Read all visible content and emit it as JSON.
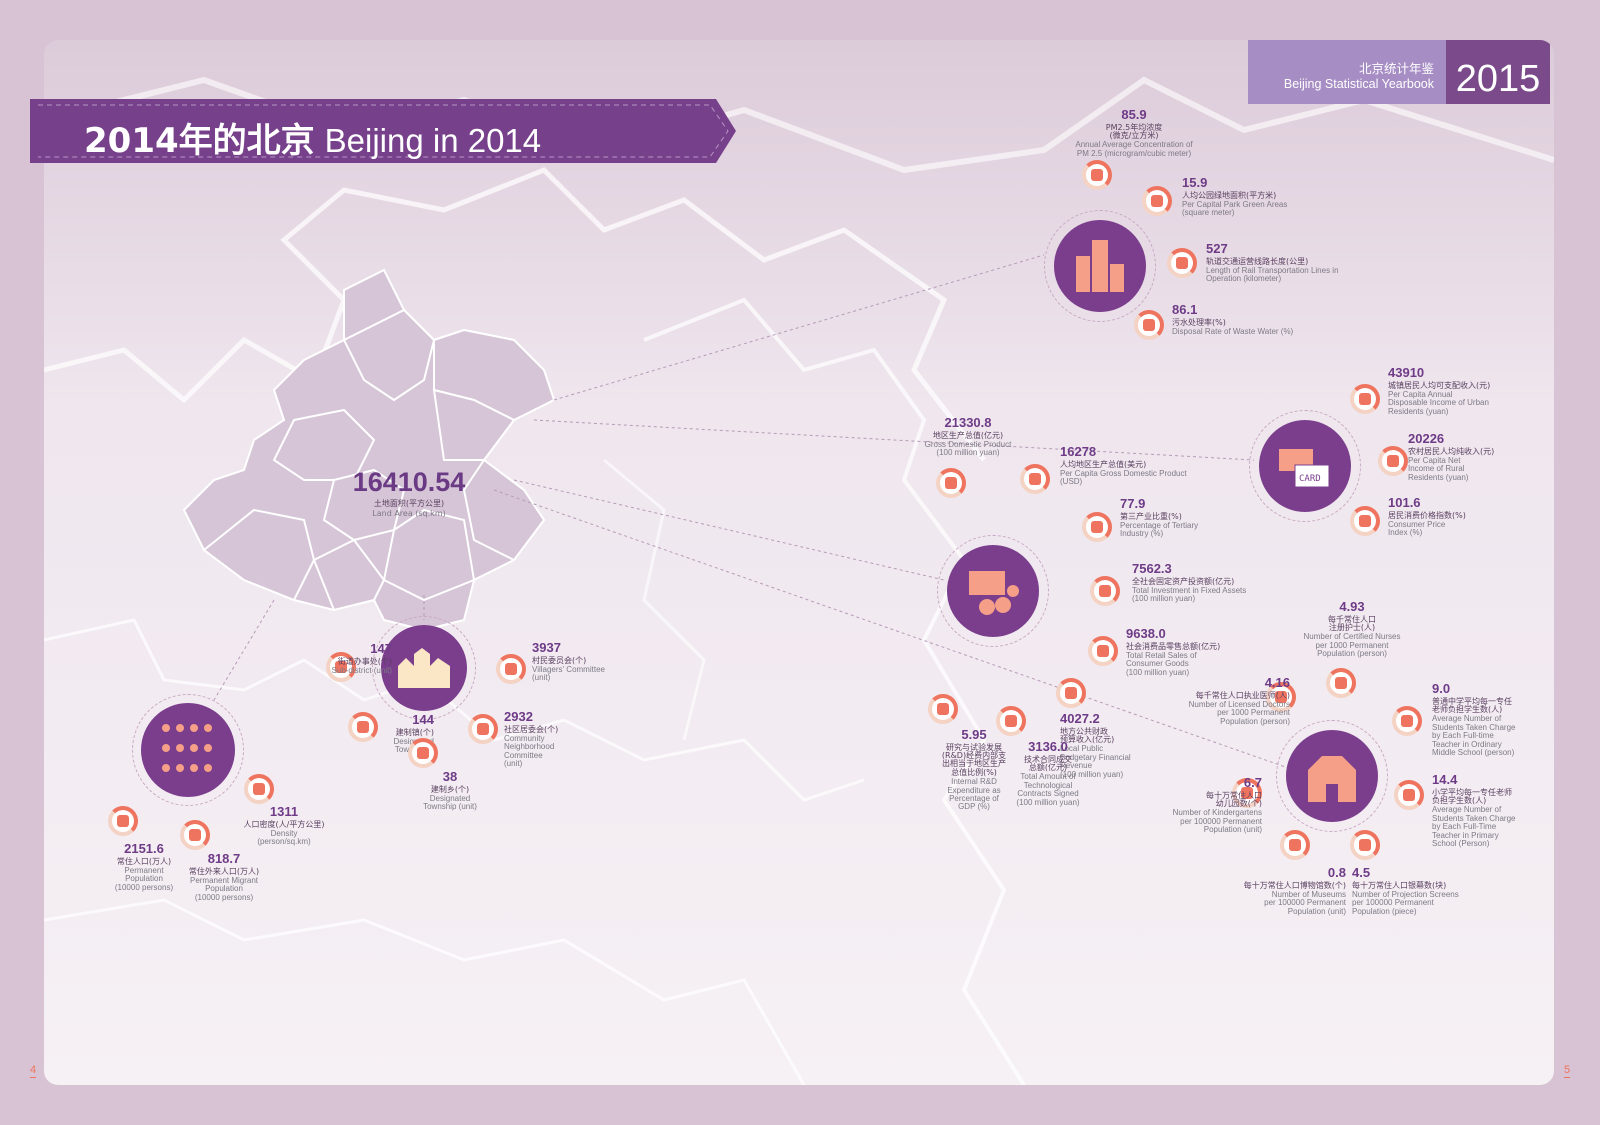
{
  "yearbook": {
    "title_cn": "北京统计年鉴",
    "title_en": "Beijing Statistical Yearbook",
    "year": "2015"
  },
  "banner": {
    "cn": "2014年的北京",
    "en": "Beijing in 2014"
  },
  "land_area": {
    "value": "16410.54",
    "cn": "土地面积(平方公里)",
    "en": "Land Area (sq.km)"
  },
  "stats": [
    {
      "value": "85.9",
      "cn": "PM2.5年均浓度\n(微克/立方米)",
      "en": "Annual Average Concentration of\nPM 2.5 (microgram/cubic meter)"
    },
    {
      "value": "15.9",
      "cn": "人均公园绿地面积(平方米)",
      "en": "Per Capital Park Green Areas\n(square meter)"
    },
    {
      "value": "527",
      "cn": "轨道交通运营线路长度(公里)",
      "en": "Length of Rail Transportation Lines in\nOperation (kilometer)"
    },
    {
      "value": "86.1",
      "cn": "污水处理率(%)",
      "en": "Disposal Rate of Waste Water (%)"
    },
    {
      "value": "43910",
      "cn": "城镇居民人均可支配收入(元)",
      "en": "Per Capita Annual\nDisposable Income of Urban\nResidents (yuan)"
    },
    {
      "value": "20226",
      "cn": "农村居民人均纯收入(元)",
      "en": "Per Capita Net\nIncome of Rural\nResidents (yuan)"
    },
    {
      "value": "101.6",
      "cn": "居民消费价格指数(%)",
      "en": "Consumer Price\nIndex (%)"
    },
    {
      "value": "21330.8",
      "cn": "地区生产总值(亿元)",
      "en": "Gross Domestic Product\n(100 million yuan)"
    },
    {
      "value": "16278",
      "cn": "人均地区生产总值(美元)",
      "en": "Per Capita Gross Domestic Product\n(USD)"
    },
    {
      "value": "77.9",
      "cn": "第三产业比重(%)",
      "en": "Percentage of Tertiary\nIndustry (%)"
    },
    {
      "value": "7562.3",
      "cn": "全社会固定资产投资额(亿元)",
      "en": "Total Investment in Fixed Assets\n(100 million yuan)"
    },
    {
      "value": "9638.0",
      "cn": "社会消费品零售总额(亿元)",
      "en": "Total Retail Sales of\nConsumer Goods\n(100 million yuan)"
    },
    {
      "value": "4027.2",
      "cn": "地方公共财政\n预算收入(亿元)",
      "en": "Local Public\nBudgetary Financial\nRevenue\n(100 million yuan)"
    },
    {
      "value": "3136.0",
      "cn": "技术合同成交\n总额(亿元)",
      "en": "Total Amount of\nTechnological\nContracts Signed\n(100 million yuan)"
    },
    {
      "value": "5.95",
      "cn": "研究与试验发展\n(R&D)经费内部支\n出相当于地区生产\n总值比例(%)",
      "en": "Internal R&D\nExpenditure as\nPercentage of\nGDP (%)"
    },
    {
      "value": "4.93",
      "cn": "每千常住人口\n注册护士(人)",
      "en": "Number of Certified Nurses\nper 1000 Permanent\nPopulation (person)"
    },
    {
      "value": "4.16",
      "cn": "每千常住人口执业医师(人)",
      "en": "Number of Licensed Doctors\nper 1000 Permanent\nPopulation (person)"
    },
    {
      "value": "9.0",
      "cn": "普通中学平均每一专任\n老师负担学生数(人)",
      "en": "Average Number of\nStudents Taken Charge\nby Each Full-time\nTeacher in Ordinary\nMiddle School (person)"
    },
    {
      "value": "14.4",
      "cn": "小学平均每一专任老师\n负担学生数(人)",
      "en": "Average Number of\nStudents Taken Charge\nby Each Full-Time\nTeacher in Primary\nSchool (Person)"
    },
    {
      "value": "6.7",
      "cn": "每十万常住人口\n幼儿园数(个)",
      "en": "Number of Kindergartens\nper 100000 Permanent\nPopulation (unit)"
    },
    {
      "value": "0.8",
      "cn": "每十万常住人口博物馆数(个)",
      "en": "Number of Museums\nper 100000 Permanent\nPopulation (unit)"
    },
    {
      "value": "4.5",
      "cn": "每十万常住人口银幕数(块)",
      "en": "Number of Projection Screens\nper 100000 Permanent\nPopulation (piece)"
    },
    {
      "value": "147",
      "cn": "街道办事处(个)",
      "en": "Sub-district (unit)"
    },
    {
      "value": "3937",
      "cn": "村民委员会(个)",
      "en": "Villagers' Committee\n(unit)"
    },
    {
      "value": "144",
      "cn": "建制镇(个)",
      "en": "Designated\nTown (unit)"
    },
    {
      "value": "2932",
      "cn": "社区居委会(个)",
      "en": "Community\nNeighborhood\nCommittee\n(unit)"
    },
    {
      "value": "38",
      "cn": "建制乡(个)",
      "en": "Designated\nTownship (unit)"
    },
    {
      "value": "1311",
      "cn": "人口密度(人/平方公里)",
      "en": "Density\n(person/sq.km)"
    },
    {
      "value": "2151.6",
      "cn": "常住人口(万人)",
      "en": "Permanent\nPopulation\n(10000 persons)"
    },
    {
      "value": "818.7",
      "cn": "常住外来人口(万人)",
      "en": "Permanent Migrant\nPopulation\n(10000 persons)"
    }
  ],
  "icons": [
    "tree-icon",
    "flower-icon",
    "train-icon",
    "water-drop-icon",
    "wallet-icon",
    "hand-money-icon",
    "trend-icon",
    "briefcase-icon",
    "coins-icon",
    "pie-icon",
    "factory-icon",
    "cart-icon",
    "money-bag-icon",
    "bulb-icon",
    "research-icon",
    "nurse-icon",
    "doctor-icon",
    "school-icon",
    "school-icon",
    "kindergarten-icon",
    "museum-icon",
    "cinema-icon",
    "hand-icon",
    "house-icon",
    "town-icon",
    "bus-icon",
    "village-icon",
    "person-icon",
    "person-icon",
    "migrant-icon"
  ],
  "colors": {
    "purple": "#7a3e8c",
    "accent": "#ef7460",
    "light": "#a68dc4"
  },
  "page_numbers": {
    "left": "4",
    "right": "5"
  }
}
